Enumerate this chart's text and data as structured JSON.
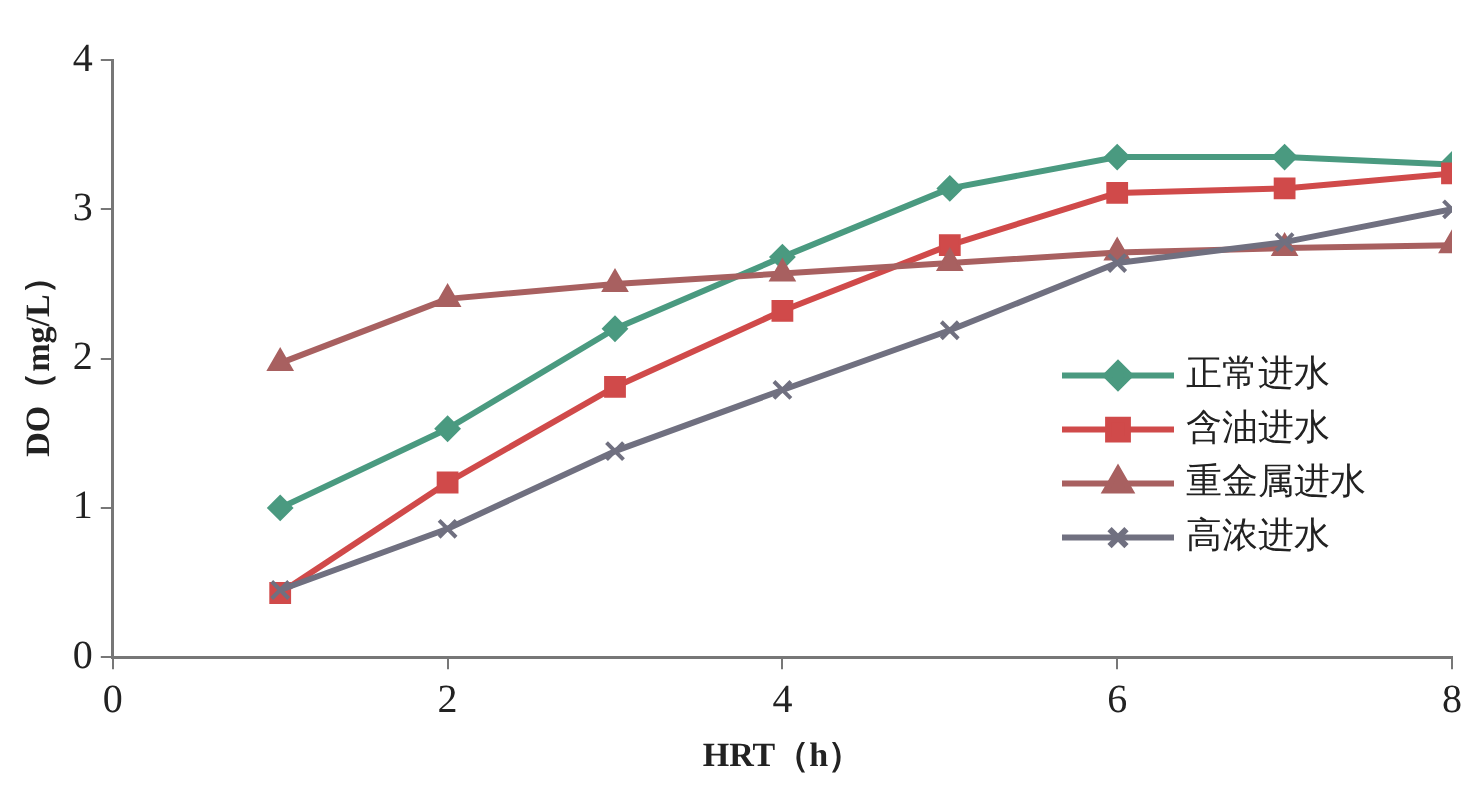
{
  "chart_data": {
    "type": "line",
    "xlabel": "HRT（h）",
    "ylabel": "DO（mg/L）",
    "x": [
      1,
      2,
      3,
      4,
      5,
      6,
      7,
      8
    ],
    "xlim": [
      0,
      8
    ],
    "xticks": [
      0,
      2,
      4,
      6,
      8
    ],
    "ylim": [
      0,
      4
    ],
    "yticks": [
      0,
      1,
      2,
      3,
      4
    ],
    "grid": false,
    "legend": "right",
    "series": [
      {
        "name": "正常进水",
        "color": "#4a9a80",
        "marker": "diamond",
        "values": [
          1.0,
          1.53,
          2.2,
          2.68,
          3.14,
          3.35,
          3.35,
          3.3
        ]
      },
      {
        "name": "含油进水",
        "color": "#d04a4a",
        "marker": "square",
        "values": [
          0.43,
          1.17,
          1.81,
          2.32,
          2.76,
          3.11,
          3.14,
          3.24
        ]
      },
      {
        "name": "重金属进水",
        "color": "#a86060",
        "marker": "triangle",
        "values": [
          1.97,
          2.4,
          2.5,
          2.57,
          2.64,
          2.71,
          2.74,
          2.76
        ]
      },
      {
        "name": "高浓进水",
        "color": "#707080",
        "marker": "cross",
        "values": [
          0.45,
          0.86,
          1.38,
          1.79,
          2.19,
          2.64,
          2.78,
          3.0
        ]
      }
    ]
  }
}
